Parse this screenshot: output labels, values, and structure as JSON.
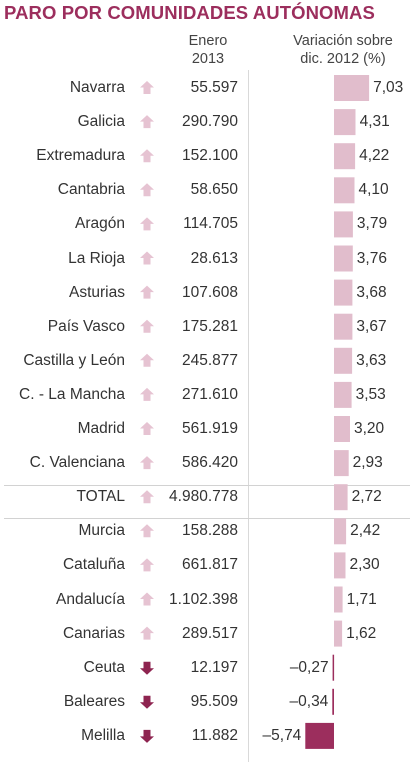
{
  "title": "PARO POR COMUNIDADES AUTÓNOMAS",
  "header": {
    "month_line1": "Enero",
    "month_line2": "2013",
    "variation_line1": "Variación sobre",
    "variation_line2": "dic. 2012 (%)"
  },
  "colors": {
    "title": "#9c2e5d",
    "positive_bar": "#e1bdcc",
    "negative_bar": "#9c2e5d",
    "arrow_up": "#e6c3d2",
    "arrow_down": "#8e2450"
  },
  "chart_data": {
    "type": "bar",
    "orientation": "horizontal",
    "title": "PARO POR COMUNIDADES AUTÓNOMAS",
    "categories": [
      "Navarra",
      "Galicia",
      "Extremadura",
      "Cantabria",
      "Aragón",
      "La Rioja",
      "Asturias",
      "País Vasco",
      "Castilla y León",
      "C. - La Mancha",
      "Madrid",
      "C. Valenciana",
      "TOTAL",
      "Murcia",
      "Cataluña",
      "Andalucía",
      "Canarias",
      "Ceuta",
      "Baleares",
      "Melilla"
    ],
    "paro_enero_2013": [
      "55.597",
      "290.790",
      "152.100",
      "58.650",
      "114.705",
      "28.613",
      "107.608",
      "175.281",
      "245.877",
      "271.610",
      "561.919",
      "586.420",
      "4.980.778",
      "158.288",
      "661.817",
      "1.102.398",
      "289.517",
      "12.197",
      "95.509",
      "11.882"
    ],
    "variacion_labels": [
      "7,03",
      "4,31",
      "4,22",
      "4,10",
      "3,79",
      "3,76",
      "3,68",
      "3,67",
      "3,63",
      "3,53",
      "3,20",
      "2,93",
      "2,72",
      "2,42",
      "2,30",
      "1,71",
      "1,62",
      "–0,27",
      "–0,34",
      "–5,74"
    ],
    "values": [
      7.03,
      4.31,
      4.22,
      4.1,
      3.79,
      3.76,
      3.68,
      3.67,
      3.63,
      3.53,
      3.2,
      2.93,
      2.72,
      2.42,
      2.3,
      1.71,
      1.62,
      -0.27,
      -0.34,
      -5.74
    ],
    "trend": [
      "up",
      "up",
      "up",
      "up",
      "up",
      "up",
      "up",
      "up",
      "up",
      "up",
      "up",
      "up",
      "up",
      "up",
      "up",
      "up",
      "up",
      "down",
      "down",
      "down"
    ]
  }
}
